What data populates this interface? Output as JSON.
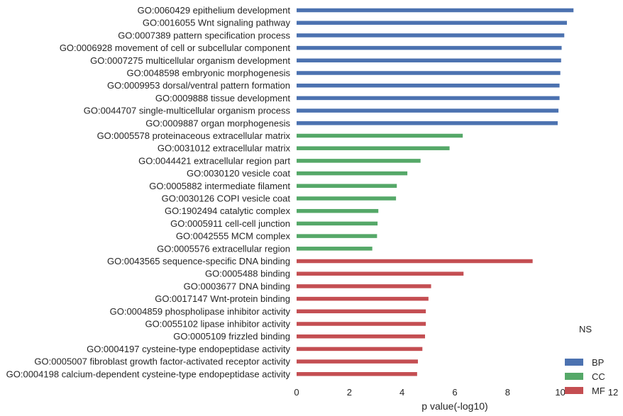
{
  "chart_data": {
    "type": "bar",
    "orientation": "horizontal",
    "xlabel": "p value(-log10)",
    "xlim": [
      0,
      12
    ],
    "xticks": [
      0,
      2,
      4,
      6,
      8,
      10,
      12
    ],
    "grid": false,
    "legend": {
      "title": "NS",
      "placement": "bottom-right",
      "entries": [
        {
          "name": "BP",
          "color": "#4c72b0"
        },
        {
          "name": "CC",
          "color": "#55a868"
        },
        {
          "name": "MF",
          "color": "#c44e52"
        }
      ]
    },
    "categories": [
      "GO:0060429 epithelium development",
      "GO:0016055 Wnt signaling pathway",
      "GO:0007389 pattern specification process",
      "GO:0006928 movement of cell or subcellular component",
      "GO:0007275 multicellular organism development",
      "GO:0048598 embryonic morphogenesis",
      "GO:0009953 dorsal/ventral pattern formation",
      "GO:0009888 tissue development",
      "GO:0044707 single-multicellular organism process",
      "GO:0009887 organ morphogenesis",
      "GO:0005578 proteinaceous extracellular matrix",
      "GO:0031012 extracellular matrix",
      "GO:0044421 extracellular region part",
      "GO:0030120 vesicle coat",
      "GO:0005882 intermediate filament",
      "GO:0030126 COPI vesicle coat",
      "GO:1902494 catalytic complex",
      "GO:0005911 cell-cell junction",
      "GO:0042555 MCM complex",
      "GO:0005576 extracellular region",
      "GO:0043565 sequence-specific DNA binding",
      "GO:0005488 binding",
      "GO:0003677 DNA binding",
      "GO:0017147 Wnt-protein binding",
      "GO:0004859 phospholipase inhibitor activity",
      "GO:0055102 lipase inhibitor activity",
      "GO:0005109 frizzled binding",
      "GO:0004197 cysteine-type endopeptidase activity",
      "GO:0005007 fibroblast growth factor-activated receptor activity",
      "GO:0004198 calcium-dependent cysteine-type endopeptidase activity"
    ],
    "series": [
      {
        "name": "BP",
        "values": [
          10.5,
          10.25,
          10.15,
          10.05,
          10.03,
          10.0,
          9.97,
          9.97,
          9.93,
          9.9,
          null,
          null,
          null,
          null,
          null,
          null,
          null,
          null,
          null,
          null,
          null,
          null,
          null,
          null,
          null,
          null,
          null,
          null,
          null,
          null
        ]
      },
      {
        "name": "CC",
        "values": [
          null,
          null,
          null,
          null,
          null,
          null,
          null,
          null,
          null,
          null,
          6.3,
          5.8,
          4.7,
          4.2,
          3.8,
          3.77,
          3.1,
          3.07,
          3.05,
          2.87,
          null,
          null,
          null,
          null,
          null,
          null,
          null,
          null,
          null,
          null
        ]
      },
      {
        "name": "MF",
        "values": [
          null,
          null,
          null,
          null,
          null,
          null,
          null,
          null,
          null,
          null,
          null,
          null,
          null,
          null,
          null,
          null,
          null,
          null,
          null,
          null,
          8.95,
          6.33,
          5.1,
          5.0,
          4.9,
          4.9,
          4.87,
          4.77,
          4.6,
          4.57
        ]
      }
    ]
  }
}
